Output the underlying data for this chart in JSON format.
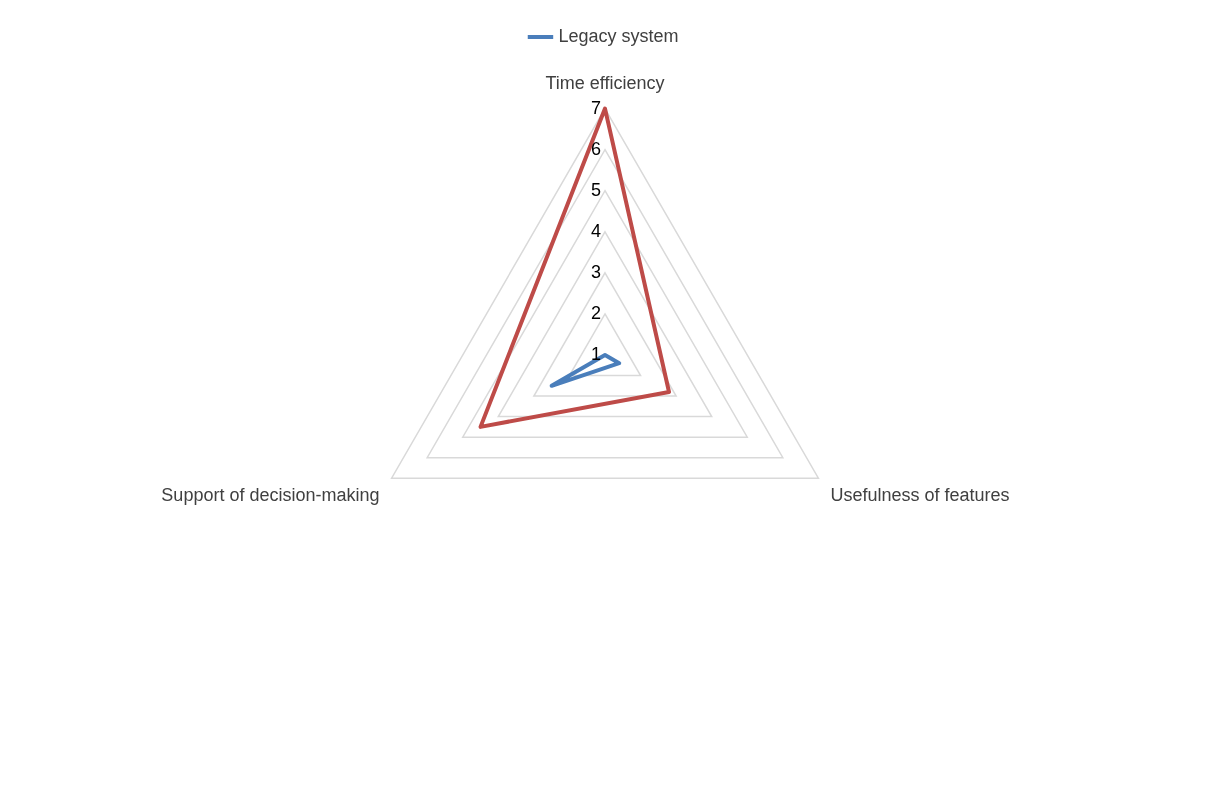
{
  "chart_data": {
    "type": "radar",
    "categories": [
      "Time efficiency",
      "Usefulness of features",
      "Support of decision-making"
    ],
    "series": [
      {
        "name": "Legacy system",
        "color": "#4a7ebb",
        "values": [
          1,
          1.4,
          2.5
        ]
      },
      {
        "color": "#be4b48",
        "values": [
          7,
          2.8,
          4.5
        ]
      }
    ],
    "ylim": [
      1,
      7
    ],
    "yticks": [
      1,
      2,
      3,
      4,
      5,
      6,
      7
    ],
    "grid": true,
    "legend": "top",
    "marker": "none",
    "line_style": "solid"
  }
}
